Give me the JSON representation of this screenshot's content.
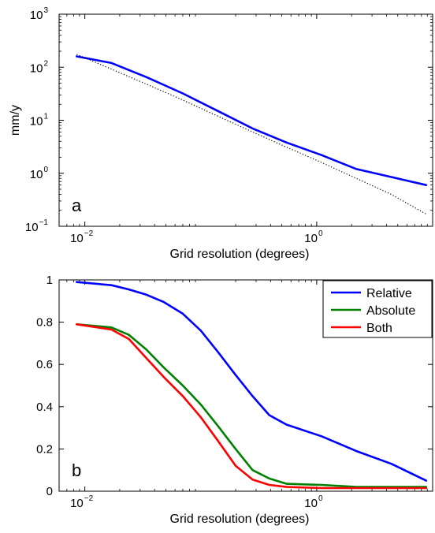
{
  "chart_data": [
    {
      "type": "line",
      "panel_label": "a",
      "xlabel": "Grid resolution (degrees)",
      "ylabel": "mm/y",
      "xscale": "log",
      "yscale": "log",
      "xlim": [
        0.006,
        10
      ],
      "ylim": [
        0.1,
        1000
      ],
      "x_ticks": [
        {
          "value": 0.01,
          "base": "10",
          "exp": "−2"
        },
        {
          "value": 1,
          "base": "10",
          "exp": "0"
        }
      ],
      "y_ticks": [
        {
          "value": 0.1,
          "base": "10",
          "exp": "−1"
        },
        {
          "value": 1,
          "base": "10",
          "exp": "0"
        },
        {
          "value": 10,
          "base": "10",
          "exp": "1"
        },
        {
          "value": 100,
          "base": "10",
          "exp": "2"
        },
        {
          "value": 1000,
          "base": "10",
          "exp": "3"
        }
      ],
      "grid": false,
      "series": [
        {
          "color": "#0000ff",
          "style": "solid",
          "x": [
            0.0085,
            0.017,
            0.034,
            0.07,
            0.14,
            0.28,
            0.55,
            1.1,
            2.2,
            4.4,
            8.8
          ],
          "y": [
            160,
            120,
            65,
            32,
            15,
            7,
            3.8,
            2.2,
            1.2,
            0.85,
            0.6
          ]
        },
        {
          "color": "#000000",
          "style": "dotted",
          "x": [
            0.0085,
            0.017,
            0.034,
            0.07,
            0.14,
            0.28,
            0.55,
            1.1,
            2.2,
            4.4,
            8.8
          ],
          "y": [
            175,
            92,
            48,
            24,
            12,
            6,
            3.1,
            1.6,
            0.8,
            0.4,
            0.17
          ]
        }
      ]
    },
    {
      "type": "line",
      "panel_label": "b",
      "xlabel": "Grid resolution (degrees)",
      "ylabel": "",
      "xscale": "log",
      "yscale": "linear",
      "xlim": [
        0.006,
        10
      ],
      "ylim": [
        0,
        1
      ],
      "x_ticks": [
        {
          "value": 0.01,
          "base": "10",
          "exp": "−2"
        },
        {
          "value": 1,
          "base": "10",
          "exp": "0"
        }
      ],
      "y_ticks": [
        {
          "value": 0,
          "label": "0"
        },
        {
          "value": 0.2,
          "label": "0.2"
        },
        {
          "value": 0.4,
          "label": "0.4"
        },
        {
          "value": 0.6,
          "label": "0.6"
        },
        {
          "value": 0.8,
          "label": "0.8"
        },
        {
          "value": 1,
          "label": "1"
        }
      ],
      "grid": false,
      "legend_position": "top-right",
      "series": [
        {
          "name": "Relative",
          "color": "#0000ff",
          "x": [
            0.0085,
            0.017,
            0.024,
            0.034,
            0.048,
            0.07,
            0.1,
            0.14,
            0.2,
            0.28,
            0.39,
            0.55,
            1.1,
            2.2,
            4.4,
            8.8
          ],
          "y": [
            0.99,
            0.975,
            0.955,
            0.93,
            0.895,
            0.84,
            0.76,
            0.66,
            0.55,
            0.45,
            0.36,
            0.315,
            0.26,
            0.19,
            0.13,
            0.05
          ]
        },
        {
          "name": "Absolute",
          "color": "#008000",
          "x": [
            0.0085,
            0.017,
            0.024,
            0.034,
            0.048,
            0.07,
            0.1,
            0.14,
            0.2,
            0.28,
            0.39,
            0.55,
            1.1,
            2.2,
            4.4,
            8.8
          ],
          "y": [
            0.79,
            0.775,
            0.74,
            0.67,
            0.585,
            0.5,
            0.41,
            0.31,
            0.2,
            0.1,
            0.06,
            0.035,
            0.03,
            0.02,
            0.02,
            0.02
          ]
        },
        {
          "name": "Both",
          "color": "#ff0000",
          "x": [
            0.0085,
            0.017,
            0.024,
            0.034,
            0.048,
            0.07,
            0.1,
            0.14,
            0.2,
            0.28,
            0.39,
            0.55,
            1.1,
            2.2,
            4.4,
            8.8
          ],
          "y": [
            0.79,
            0.765,
            0.72,
            0.63,
            0.54,
            0.45,
            0.35,
            0.24,
            0.12,
            0.055,
            0.03,
            0.02,
            0.015,
            0.015,
            0.015,
            0.015
          ]
        }
      ]
    }
  ]
}
